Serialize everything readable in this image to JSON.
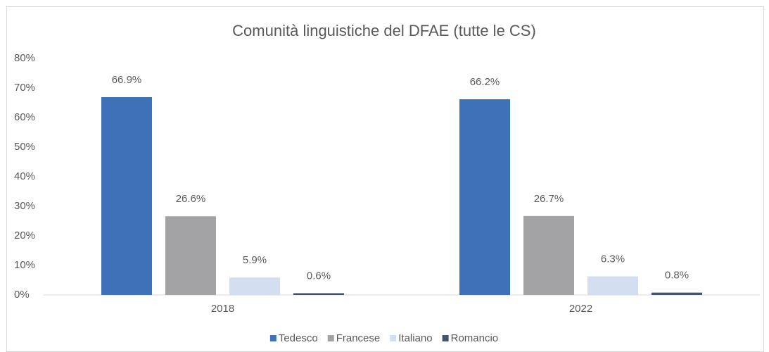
{
  "chart_data": {
    "type": "bar",
    "title": "Comunità linguistiche del DFAE (tutte le CS)",
    "categories": [
      "2018",
      "2022"
    ],
    "series": [
      {
        "name": "Tedesco",
        "color": "#3f71b9",
        "values": [
          66.9,
          66.2
        ],
        "value_labels": [
          "66.9%",
          "66.2%"
        ]
      },
      {
        "name": "Francese",
        "color": "#a3a3a5",
        "values": [
          26.6,
          26.7
        ],
        "value_labels": [
          "26.6%",
          "26.7%"
        ]
      },
      {
        "name": "Italiano",
        "color": "#d3def0",
        "values": [
          5.9,
          6.3
        ],
        "value_labels": [
          "5.9%",
          "6.3%"
        ]
      },
      {
        "name": "Romancio",
        "color": "#44546a",
        "values": [
          0.6,
          0.8
        ],
        "value_labels": [
          "0.6%",
          "0.8%"
        ]
      }
    ],
    "ylim": [
      0,
      80
    ],
    "yticks": [
      {
        "value": 0,
        "label": "0%"
      },
      {
        "value": 10,
        "label": "10%"
      },
      {
        "value": 20,
        "label": "20%"
      },
      {
        "value": 30,
        "label": "30%"
      },
      {
        "value": 40,
        "label": "40%"
      },
      {
        "value": 50,
        "label": "50%"
      },
      {
        "value": 60,
        "label": "60%"
      },
      {
        "value": 70,
        "label": "70%"
      },
      {
        "value": 80,
        "label": "80%"
      }
    ],
    "grid": false,
    "legend": "bottom"
  }
}
